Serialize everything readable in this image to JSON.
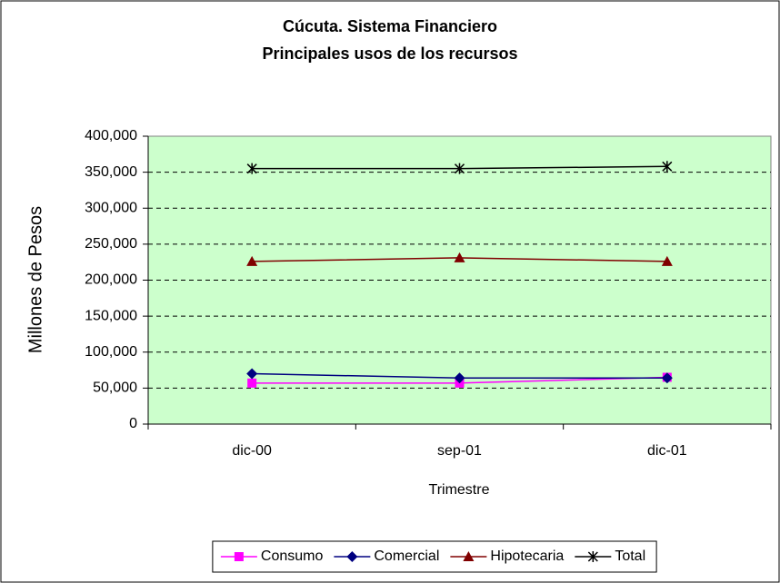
{
  "chart_data": {
    "type": "line",
    "title": "Cúcuta. Sistema Financiero",
    "subtitle": "Principales usos de los recursos",
    "y_label": "Millones de Pesos",
    "x_label": "Trimestre",
    "categories": [
      "dic-00",
      "sep-01",
      "dic-01"
    ],
    "series": [
      {
        "name": "Consumo",
        "color": "#ff00ff",
        "marker": "square",
        "values": [
          57000,
          57000,
          65000
        ]
      },
      {
        "name": "Comercial",
        "color": "#000080",
        "marker": "diamond",
        "values": [
          70000,
          64000,
          64000
        ]
      },
      {
        "name": "Hipotecaria",
        "color": "#800000",
        "marker": "triangle",
        "values": [
          226000,
          231000,
          226000
        ]
      },
      {
        "name": "Total",
        "color": "#000000",
        "marker": "asterisk",
        "values": [
          355000,
          355000,
          358000
        ]
      }
    ],
    "ylim": [
      0,
      400000
    ],
    "yticks": [
      0,
      {
        "value": 50000,
        "label": "50,000"
      },
      {
        "value": 100000,
        "label": "100,000"
      },
      {
        "value": 150000,
        "label": "150,000"
      },
      {
        "value": 200000,
        "label": "200,000"
      },
      {
        "value": 250000,
        "label": "250,000"
      },
      {
        "value": 300000,
        "label": "300,000"
      },
      {
        "value": 350000,
        "label": "350,000"
      },
      {
        "value": 400000,
        "label": "400,000"
      }
    ],
    "grid": true,
    "plot_background": "#ccffcc",
    "legend": "bottom"
  }
}
